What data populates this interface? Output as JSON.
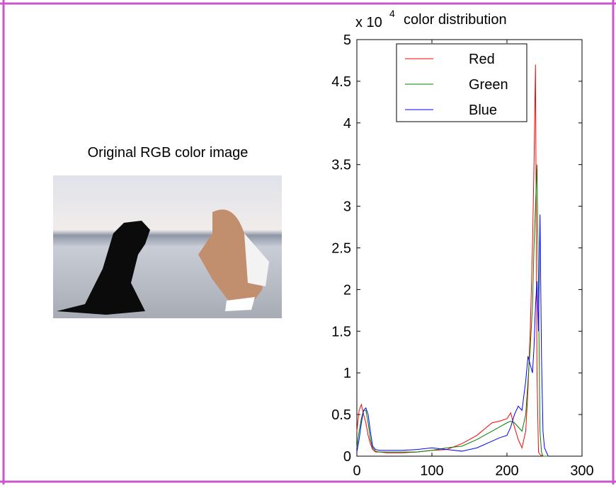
{
  "image_panel": {
    "title": "Original RGB color image"
  },
  "chart_data": {
    "type": "line",
    "title": "color distribution",
    "y_multiplier": {
      "base": "x 10",
      "exponent": "4"
    },
    "x": [
      0,
      3,
      6,
      9,
      12,
      15,
      18,
      21,
      25,
      30,
      40,
      60,
      80,
      100,
      120,
      140,
      160,
      180,
      190,
      200,
      205,
      210,
      215,
      220,
      225,
      228,
      231,
      234,
      236,
      238,
      240,
      242,
      244,
      246,
      248,
      250,
      255
    ],
    "series": [
      {
        "name": "Red",
        "color": "#ff0000",
        "values": [
          0.3,
          0.55,
          0.62,
          0.5,
          0.4,
          0.25,
          0.15,
          0.08,
          0.05,
          0.05,
          0.04,
          0.04,
          0.05,
          0.07,
          0.08,
          0.15,
          0.25,
          0.4,
          0.42,
          0.45,
          0.52,
          0.35,
          0.2,
          0.1,
          0.3,
          0.8,
          1.5,
          2.5,
          3.5,
          4.7,
          1.0,
          0.05,
          0.02,
          0.01,
          0,
          0,
          0
        ]
      },
      {
        "name": "Green",
        "color": "#008000",
        "values": [
          0.1,
          0.3,
          0.45,
          0.55,
          0.55,
          0.4,
          0.2,
          0.1,
          0.06,
          0.05,
          0.05,
          0.05,
          0.05,
          0.07,
          0.1,
          0.12,
          0.2,
          0.3,
          0.35,
          0.4,
          0.42,
          0.4,
          0.35,
          0.3,
          0.5,
          0.9,
          1.3,
          1.8,
          2.5,
          3.0,
          3.5,
          2.0,
          0.3,
          0.05,
          0,
          0,
          0
        ]
      },
      {
        "name": "Blue",
        "color": "#0000ff",
        "values": [
          0.05,
          0.2,
          0.4,
          0.55,
          0.58,
          0.5,
          0.3,
          0.12,
          0.08,
          0.07,
          0.07,
          0.07,
          0.08,
          0.1,
          0.08,
          0.06,
          0.1,
          0.18,
          0.22,
          0.25,
          0.35,
          0.5,
          0.6,
          0.55,
          0.9,
          1.2,
          1.1,
          1.0,
          1.3,
          1.8,
          2.1,
          1.5,
          2.9,
          1.2,
          0.3,
          0.1,
          0
        ]
      }
    ],
    "xlim": [
      0,
      300
    ],
    "xticks": [
      0,
      100,
      200,
      300
    ],
    "ylim": [
      0,
      5
    ],
    "yticks": [
      0,
      0.5,
      1,
      1.5,
      2,
      2.5,
      3,
      3.5,
      4,
      4.5,
      5
    ],
    "legend": "top-center"
  }
}
